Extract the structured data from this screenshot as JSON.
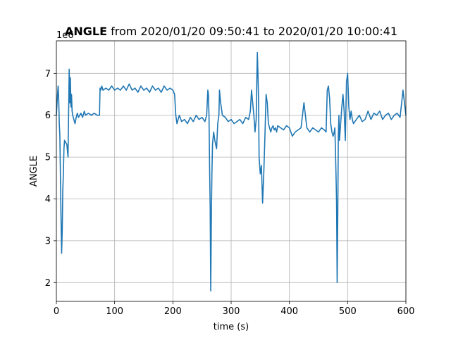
{
  "chart_data": {
    "type": "line",
    "title_bold": "ANGLE",
    "title_rest": " from 2020/01/20 09:50:41 to 2020/01/20 10:00:41",
    "xlabel": "time (s)",
    "ylabel": "ANGLE",
    "y_offset_label": "1e6",
    "xlim": [
      0,
      600
    ],
    "ylim": [
      1.55,
      7.78
    ],
    "x_ticks": [
      0,
      100,
      200,
      300,
      400,
      500,
      600
    ],
    "y_ticks": [
      2,
      3,
      4,
      5,
      6,
      7
    ],
    "x_tick_labels": [
      "0",
      "100",
      "200",
      "300",
      "400",
      "500",
      "600"
    ],
    "y_tick_labels": [
      "2",
      "3",
      "4",
      "5",
      "6",
      "7"
    ],
    "grid": true,
    "color": "#1f77b4",
    "series": [
      {
        "x": [
          0,
          2,
          3,
          4,
          5,
          6,
          7,
          8,
          9,
          10,
          11,
          12,
          13,
          14,
          16,
          18,
          20,
          22,
          23,
          24,
          25,
          26,
          27,
          28,
          30,
          32,
          34,
          35,
          36,
          38,
          40,
          42,
          45,
          48,
          50,
          55,
          60,
          65,
          70,
          74,
          75,
          76,
          78,
          80,
          85,
          90,
          95,
          100,
          105,
          110,
          115,
          120,
          125,
          130,
          135,
          140,
          145,
          150,
          155,
          160,
          165,
          170,
          175,
          180,
          185,
          190,
          195,
          200,
          203,
          205,
          207,
          209,
          211,
          215,
          220,
          225,
          230,
          235,
          240,
          245,
          250,
          255,
          258,
          260,
          261,
          262,
          263,
          264,
          265,
          266,
          267,
          268,
          270,
          272,
          275,
          277,
          279,
          280,
          282,
          285,
          290,
          295,
          300,
          305,
          310,
          315,
          320,
          325,
          330,
          333,
          335,
          337,
          339,
          341,
          343,
          344,
          345,
          346,
          347,
          348,
          350,
          352,
          354,
          356,
          358,
          360,
          362,
          364,
          366,
          368,
          370,
          372,
          374,
          376,
          378,
          380,
          385,
          390,
          395,
          400,
          405,
          410,
          415,
          420,
          425,
          430,
          435,
          440,
          445,
          450,
          455,
          460,
          463,
          465,
          467,
          469,
          471,
          473,
          475,
          477,
          478,
          479,
          480,
          481,
          482,
          483,
          484,
          485,
          486,
          488,
          490,
          492,
          494,
          496,
          498,
          500,
          502,
          504,
          506,
          508,
          510,
          515,
          520,
          525,
          530,
          535,
          540,
          545,
          550,
          555,
          560,
          565,
          570,
          575,
          580,
          585,
          590,
          595,
          600
        ],
        "y": [
          6.0,
          6.5,
          6.7,
          6.4,
          5.8,
          5.5,
          4.5,
          3.5,
          2.7,
          3.2,
          4.2,
          4.6,
          5.2,
          5.4,
          5.35,
          5.3,
          5.0,
          7.1,
          6.3,
          6.9,
          6.2,
          6.5,
          6.1,
          6.0,
          5.9,
          5.8,
          5.95,
          6.0,
          6.05,
          5.95,
          6.0,
          6.05,
          5.95,
          6.1,
          6.0,
          6.05,
          6.0,
          6.05,
          6.0,
          6.0,
          6.65,
          6.6,
          6.7,
          6.6,
          6.65,
          6.6,
          6.7,
          6.6,
          6.65,
          6.6,
          6.7,
          6.6,
          6.75,
          6.6,
          6.65,
          6.55,
          6.7,
          6.6,
          6.65,
          6.55,
          6.7,
          6.6,
          6.65,
          6.55,
          6.7,
          6.6,
          6.65,
          6.6,
          6.5,
          6.0,
          5.8,
          5.9,
          6.0,
          5.85,
          5.9,
          5.8,
          5.95,
          5.85,
          6.0,
          5.9,
          5.95,
          5.85,
          6.0,
          6.6,
          6.5,
          6.0,
          4.8,
          3.8,
          1.8,
          3.5,
          4.6,
          5.3,
          5.6,
          5.4,
          5.2,
          5.8,
          6.0,
          6.6,
          6.3,
          6.0,
          5.95,
          5.85,
          5.9,
          5.8,
          5.85,
          5.9,
          5.8,
          5.95,
          5.9,
          6.1,
          6.6,
          6.3,
          6.0,
          5.6,
          5.9,
          6.8,
          7.5,
          7.0,
          6.4,
          5.0,
          4.6,
          4.8,
          3.9,
          4.6,
          5.5,
          6.5,
          6.3,
          5.8,
          5.7,
          5.6,
          5.7,
          5.75,
          5.65,
          5.7,
          5.6,
          5.75,
          5.7,
          5.65,
          5.75,
          5.7,
          5.5,
          5.6,
          5.65,
          5.7,
          6.3,
          5.7,
          5.6,
          5.7,
          5.65,
          5.6,
          5.7,
          5.65,
          5.6,
          6.6,
          6.7,
          6.4,
          5.8,
          5.6,
          5.5,
          5.6,
          5.7,
          5.2,
          4.6,
          3.9,
          2.0,
          3.5,
          5.5,
          6.0,
          5.4,
          5.8,
          6.2,
          6.5,
          6.1,
          5.4,
          6.8,
          7.0,
          6.2,
          5.9,
          6.1,
          5.9,
          5.8,
          5.9,
          6.0,
          5.85,
          5.9,
          6.1,
          5.9,
          6.05,
          6.0,
          6.1,
          5.9,
          6.0,
          6.05,
          5.9,
          6.0,
          6.05,
          5.95,
          6.6,
          6.0
        ]
      }
    ]
  }
}
